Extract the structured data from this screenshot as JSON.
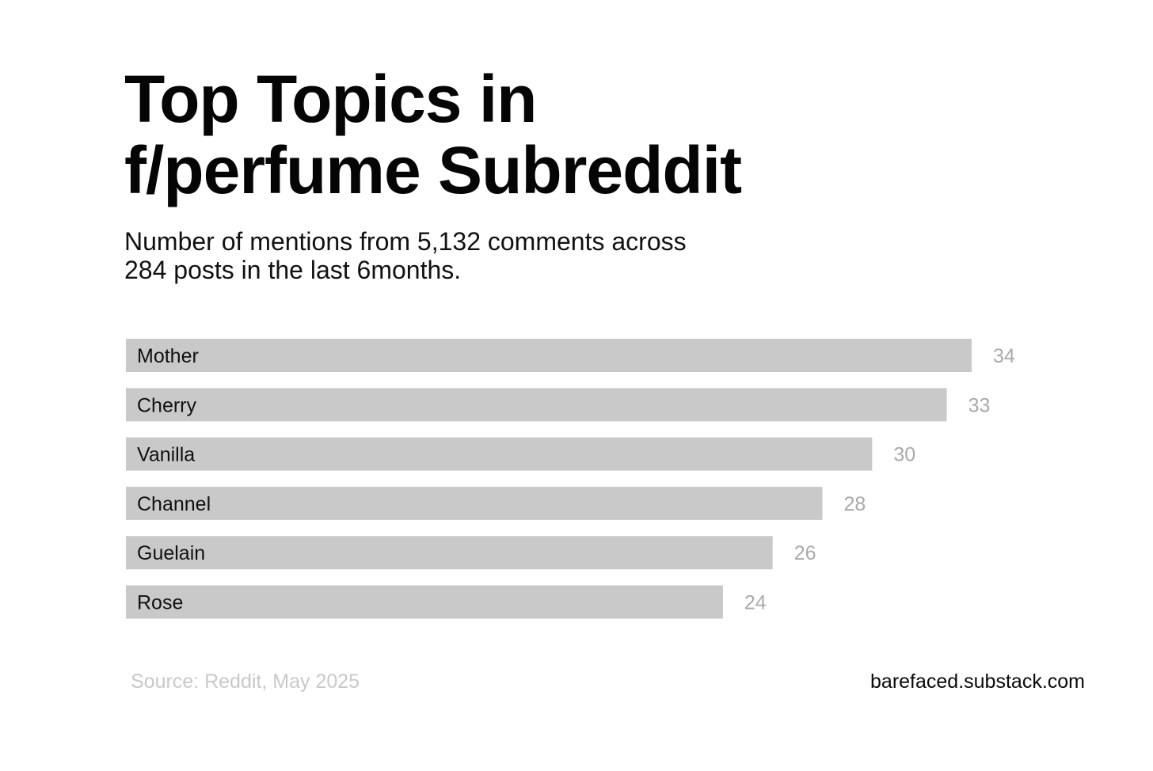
{
  "colors": {
    "bar": "#c9c9c9",
    "bar_label": "#111111",
    "value_label": "#a9a9a9",
    "source_text": "#c9c9c9"
  },
  "chart_data": {
    "type": "bar",
    "orientation": "horizontal",
    "title_lines": [
      "Top Topics in",
      "f/perfume Subreddit"
    ],
    "subtitle_lines": [
      "Number of mentions from 5,132 comments across",
      "284 posts in the last 6months."
    ],
    "categories": [
      "Mother",
      "Cherry",
      "Vanilla",
      "Channel",
      "Guelain",
      "Rose"
    ],
    "values": [
      34,
      33,
      30,
      28,
      26,
      24
    ],
    "xlim": [
      0,
      34
    ],
    "grid": false,
    "legend": "none",
    "source": "Source: Reddit, May 2025",
    "site": "barefaced.substack.com"
  }
}
